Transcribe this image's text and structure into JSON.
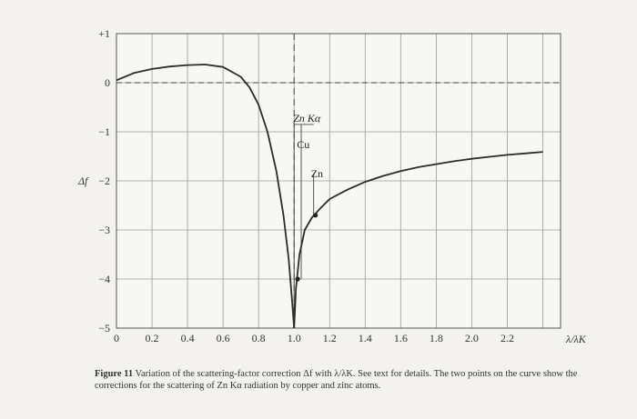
{
  "chart_data": {
    "type": "line",
    "title": "",
    "xlabel": "λ/λK",
    "ylabel": "Δf",
    "xlim": [
      0,
      2.5
    ],
    "ylim": [
      -5,
      1
    ],
    "x_ticks": [
      "0",
      "0.2",
      "0.4",
      "0.6",
      "0.8",
      "1.0",
      "1.2",
      "1.4",
      "1.6",
      "1.8",
      "2.0",
      "2.2"
    ],
    "y_ticks": [
      "+1",
      "0",
      "−1",
      "−2",
      "−3",
      "−4",
      "−5"
    ],
    "grid": true,
    "series": [
      {
        "name": "",
        "x": [
          0,
          0.1,
          0.2,
          0.3,
          0.4,
          0.5,
          0.6,
          0.7,
          0.75,
          0.8,
          0.85,
          0.9,
          0.94,
          0.97,
          0.99,
          1.0
        ],
        "y": [
          0.05,
          0.2,
          0.28,
          0.33,
          0.36,
          0.37,
          0.32,
          0.12,
          -0.1,
          -0.45,
          -1.0,
          -1.8,
          -2.7,
          -3.6,
          -4.5,
          -5.0
        ]
      },
      {
        "name": "",
        "x": [
          1.0,
          1.01,
          1.03,
          1.06,
          1.1,
          1.15,
          1.2,
          1.3,
          1.4,
          1.5,
          1.6,
          1.7,
          1.8,
          1.9,
          2.0,
          2.1,
          2.2,
          2.3,
          2.4
        ],
        "y": [
          -5.0,
          -4.2,
          -3.5,
          -3.0,
          -2.75,
          -2.55,
          -2.37,
          -2.18,
          -2.02,
          -1.9,
          -1.8,
          -1.72,
          -1.66,
          -1.6,
          -1.55,
          -1.51,
          -1.47,
          -1.44,
          -1.41
        ]
      }
    ],
    "points": [
      {
        "x": 1.02,
        "y": -4.0
      },
      {
        "x": 1.12,
        "y": -2.7
      }
    ],
    "zero_line_y": 0,
    "edge_line_x": 1.0,
    "annotations": [
      {
        "text": "Zn Kα",
        "x": 1.0
      },
      {
        "text": "Cu",
        "x": 1.0
      },
      {
        "text": "Zn",
        "x": 1.11
      }
    ],
    "marker_lines": [
      {
        "x": 1.0,
        "y_top": -0.85,
        "y_bottom": -5
      },
      {
        "x": 1.04,
        "y_top": -0.85,
        "y_bottom": -4.0
      },
      {
        "x": 1.11,
        "y_top": -1.85,
        "y_bottom": -2.7
      }
    ],
    "marker_bar": {
      "x1": 1.0,
      "x2": 1.11,
      "y": -0.85
    }
  },
  "caption": {
    "label": "Figure 11",
    "text": "Variation of the scattering-factor correction Δf with λ/λK. See text for details. The two points on the curve show the corrections for the scattering of Zn Kα radiation by copper and zinc atoms."
  }
}
